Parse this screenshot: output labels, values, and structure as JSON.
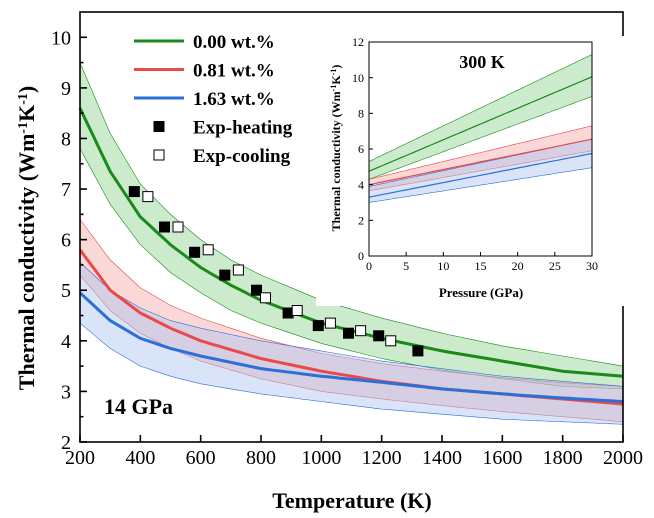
{
  "chart_data": [
    {
      "type": "line",
      "xlabel": "Temperature (K)",
      "ylabel_parts": [
        "Thermal conductivity (Wm",
        "-1",
        "K",
        "-1",
        ")"
      ],
      "xlim": [
        200,
        2000
      ],
      "ylim": [
        2,
        10.5
      ],
      "xticks": [
        200,
        400,
        600,
        800,
        1000,
        1200,
        1400,
        1600,
        1800,
        2000
      ],
      "yticks": [
        2,
        3,
        4,
        5,
        6,
        7,
        8,
        9,
        10
      ],
      "annotation": "14 GPa",
      "legend_position": "top-center",
      "series": [
        {
          "name": "0.00 wt.%",
          "color": "#1a8a1a",
          "band_color": "#8fd08f",
          "x": [
            200,
            300,
            400,
            500,
            600,
            700,
            800,
            1000,
            1200,
            1400,
            1600,
            1800,
            2000
          ],
          "y": [
            8.6,
            7.35,
            6.45,
            5.9,
            5.45,
            5.1,
            4.8,
            4.35,
            4.05,
            3.8,
            3.6,
            3.4,
            3.3
          ],
          "upper": [
            9.5,
            8.1,
            7.1,
            6.5,
            6.0,
            5.6,
            5.3,
            4.8,
            4.45,
            4.15,
            3.9,
            3.7,
            3.5
          ],
          "lower": [
            7.8,
            6.7,
            5.9,
            5.35,
            4.95,
            4.6,
            4.35,
            3.95,
            3.65,
            3.42,
            3.25,
            3.1,
            3.05
          ]
        },
        {
          "name": "0.81 wt.%",
          "color": "#e84a4a",
          "band_color": "#f4a8a8",
          "x": [
            200,
            300,
            400,
            500,
            600,
            800,
            1000,
            1200,
            1400,
            1600,
            1800,
            2000
          ],
          "y": [
            5.8,
            5.0,
            4.55,
            4.25,
            4.0,
            3.65,
            3.4,
            3.2,
            3.05,
            2.95,
            2.85,
            2.75
          ],
          "upper": [
            6.4,
            5.6,
            5.05,
            4.7,
            4.45,
            4.05,
            3.75,
            3.55,
            3.4,
            3.27,
            3.17,
            3.1
          ],
          "lower": [
            5.3,
            4.6,
            4.15,
            3.85,
            3.6,
            3.25,
            3.0,
            2.85,
            2.72,
            2.6,
            2.5,
            2.4
          ]
        },
        {
          "name": "1.63 wt.%",
          "color": "#2c6fd6",
          "band_color": "#aac4ef",
          "x": [
            200,
            300,
            400,
            500,
            600,
            800,
            1000,
            1200,
            1400,
            1600,
            1800,
            2000
          ],
          "y": [
            4.95,
            4.4,
            4.05,
            3.85,
            3.7,
            3.45,
            3.3,
            3.18,
            3.05,
            2.95,
            2.87,
            2.8
          ],
          "upper": [
            5.55,
            5.0,
            4.65,
            4.4,
            4.25,
            4.0,
            3.8,
            3.6,
            3.45,
            3.3,
            3.2,
            3.1
          ],
          "lower": [
            4.35,
            3.85,
            3.5,
            3.3,
            3.15,
            2.95,
            2.8,
            2.65,
            2.55,
            2.45,
            2.4,
            2.35
          ]
        }
      ],
      "scatter": [
        {
          "name": "Exp-heating",
          "marker": "filled-square",
          "x": [
            380,
            480,
            580,
            680,
            785,
            890,
            990,
            1090,
            1190,
            1320
          ],
          "y": [
            6.95,
            6.25,
            5.75,
            5.3,
            5.0,
            4.55,
            4.3,
            4.15,
            4.1,
            3.8
          ]
        },
        {
          "name": "Exp-cooling",
          "marker": "open-square",
          "x": [
            425,
            525,
            625,
            725,
            815,
            920,
            1030,
            1130,
            1230
          ],
          "y": [
            6.85,
            6.25,
            5.8,
            5.4,
            4.85,
            4.6,
            4.35,
            4.2,
            4.0
          ]
        }
      ]
    },
    {
      "type": "line",
      "inset": true,
      "title": "300 K",
      "xlabel": "Pressure (GPa)",
      "ylabel_parts": [
        "Thermal conductivity (Wm",
        "-1",
        "K",
        "-1",
        ")"
      ],
      "xlim": [
        0,
        30
      ],
      "ylim": [
        0,
        12
      ],
      "xticks": [
        0,
        5,
        10,
        15,
        20,
        25,
        30
      ],
      "yticks": [
        0,
        2,
        4,
        6,
        8,
        10,
        12
      ],
      "series": [
        {
          "name": "0.00 wt.%",
          "color": "#1a8a1a",
          "band_color": "#8fd08f",
          "x": [
            0,
            30
          ],
          "y": [
            4.75,
            10.05
          ],
          "upper": [
            5.3,
            11.3
          ],
          "lower": [
            4.3,
            8.95
          ]
        },
        {
          "name": "0.81 wt.%",
          "color": "#e84a4a",
          "band_color": "#f4a8a8",
          "x": [
            0,
            30
          ],
          "y": [
            4.0,
            6.55
          ],
          "upper": [
            4.3,
            7.3
          ],
          "lower": [
            3.65,
            5.9
          ]
        },
        {
          "name": "1.63 wt.%",
          "color": "#2c6fd6",
          "band_color": "#aac4ef",
          "x": [
            0,
            30
          ],
          "y": [
            3.3,
            5.75
          ],
          "upper": [
            3.9,
            6.55
          ],
          "lower": [
            3.0,
            4.95
          ]
        }
      ]
    }
  ]
}
